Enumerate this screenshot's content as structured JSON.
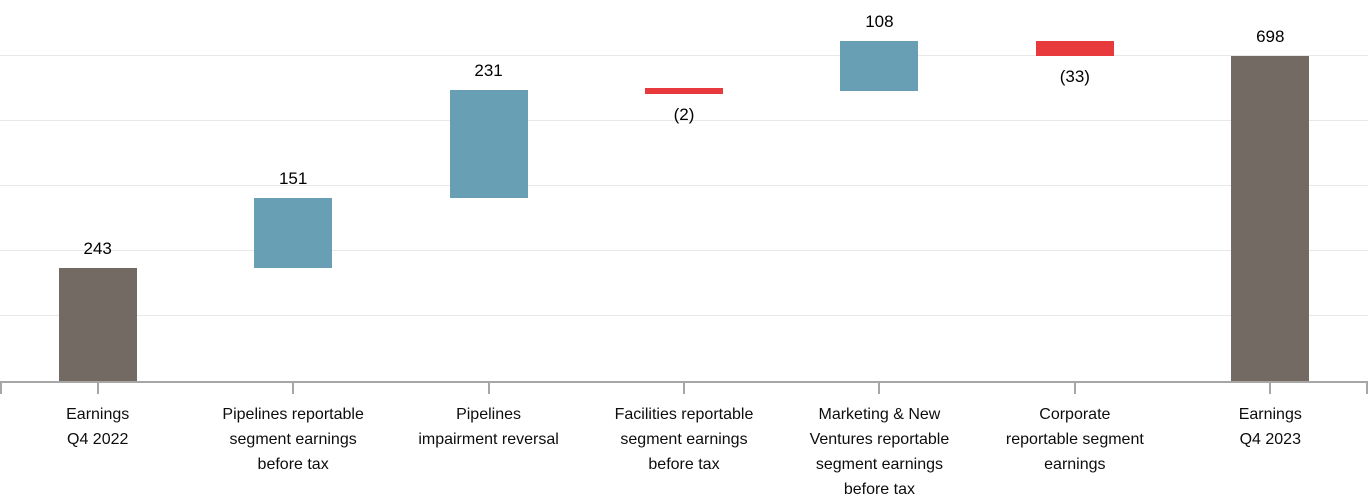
{
  "chart_data": {
    "type": "bar",
    "subtype": "waterfall",
    "title": "",
    "xlabel": "",
    "ylabel": "",
    "ylim": [
      0,
      700
    ],
    "gridline_values": [
      140,
      280,
      420,
      560,
      700
    ],
    "grid_on": true,
    "legend": "none",
    "categories": [
      {
        "label_lines": [
          "Earnings",
          "Q4 2022"
        ],
        "value": 243,
        "display": "243",
        "kind": "total",
        "cumulative_start": 0,
        "cumulative_end": 243
      },
      {
        "label_lines": [
          "Pipelines reportable",
          "segment earnings",
          "before tax"
        ],
        "value": 151,
        "display": "151",
        "kind": "increase",
        "cumulative_start": 243,
        "cumulative_end": 394
      },
      {
        "label_lines": [
          "Pipelines",
          "impairment reversal"
        ],
        "value": 231,
        "display": "231",
        "kind": "increase",
        "cumulative_start": 394,
        "cumulative_end": 625
      },
      {
        "label_lines": [
          "Facilities reportable",
          "segment earnings",
          "before tax"
        ],
        "value": -2,
        "display": "(2)",
        "kind": "decrease",
        "cumulative_start": 625,
        "cumulative_end": 623
      },
      {
        "label_lines": [
          "Marketing & New",
          "Ventures reportable",
          "segment earnings",
          "before tax"
        ],
        "value": 108,
        "display": "108",
        "kind": "increase",
        "cumulative_start": 623,
        "cumulative_end": 731
      },
      {
        "label_lines": [
          "Corporate",
          "reportable segment",
          "earnings"
        ],
        "value": -33,
        "display": "(33)",
        "kind": "decrease",
        "cumulative_start": 731,
        "cumulative_end": 698
      },
      {
        "label_lines": [
          "Earnings",
          "Q4 2023"
        ],
        "value": 698,
        "display": "698",
        "kind": "total",
        "cumulative_start": 0,
        "cumulative_end": 698
      }
    ],
    "colors": {
      "total_bar": "#736a64",
      "increase_bar": "#699fb5",
      "decrease_bar": "#e8393c",
      "gridline": "#e8e8e8",
      "axis": "#a6a6a6",
      "value_label_text": "#000000",
      "category_label_text": "#0d0d0d",
      "background": "#ffffff"
    }
  }
}
